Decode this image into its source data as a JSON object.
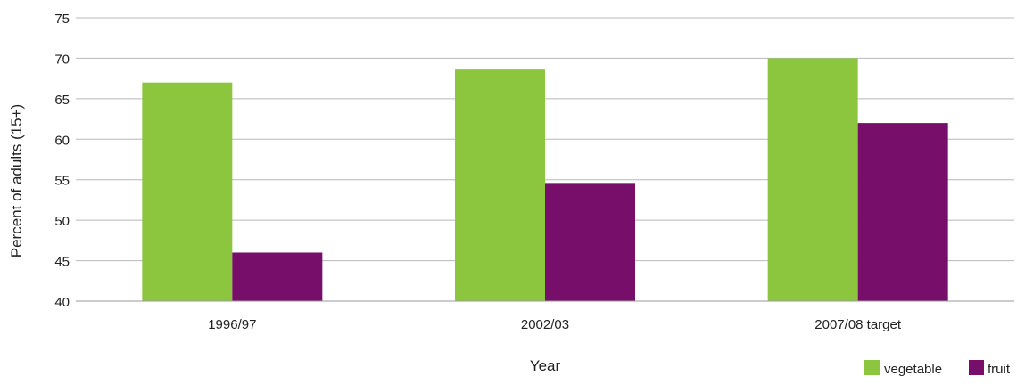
{
  "chart_data": {
    "type": "bar",
    "categories": [
      "1996/97",
      "2002/03",
      "2007/08 target"
    ],
    "series": [
      {
        "name": "vegetable",
        "color": "#8cc63f",
        "values": [
          67.0,
          68.6,
          70.0
        ]
      },
      {
        "name": "fruit",
        "color": "#770e6a",
        "values": [
          46.0,
          54.6,
          62.0
        ]
      }
    ],
    "xlabel": "Year",
    "ylabel": "Percent of adults (15+)",
    "ylim": [
      40,
      75
    ],
    "yticks": [
      "40",
      "45",
      "50",
      "55",
      "60",
      "65",
      "70",
      "75"
    ],
    "grid": true,
    "legend_position": "bottom-right"
  }
}
